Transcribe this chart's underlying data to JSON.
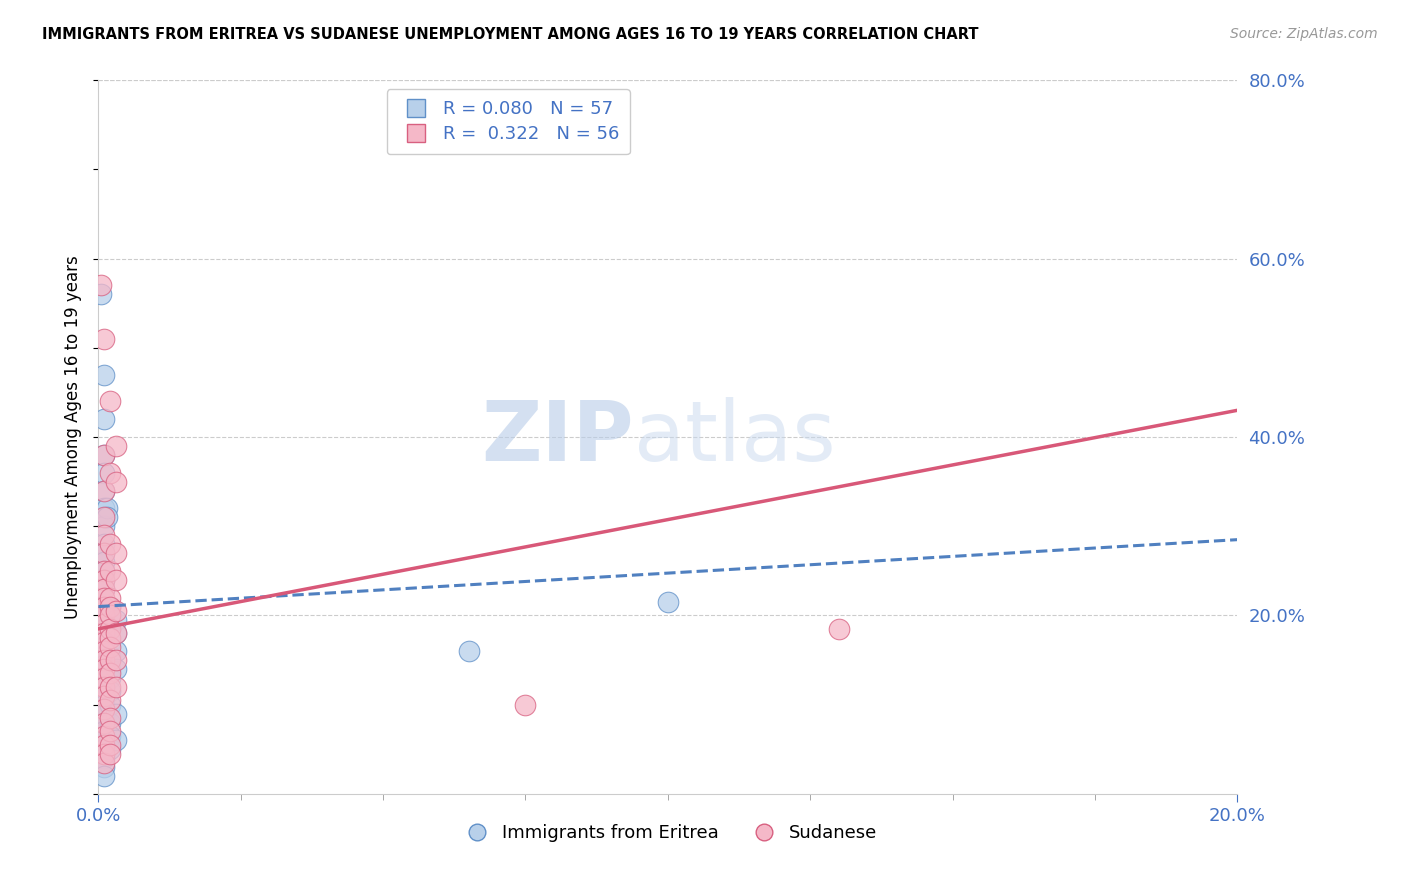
{
  "title": "IMMIGRANTS FROM ERITREA VS SUDANESE UNEMPLOYMENT AMONG AGES 16 TO 19 YEARS CORRELATION CHART",
  "source": "Source: ZipAtlas.com",
  "ylabel": "Unemployment Among Ages 16 to 19 years",
  "legend_labels": [
    "Immigrants from Eritrea",
    "Sudanese"
  ],
  "R_blue": 0.08,
  "N_blue": 57,
  "R_pink": 0.322,
  "N_pink": 56,
  "color_blue_fill": "#b8d0ea",
  "color_pink_fill": "#f5b8c8",
  "color_blue_edge": "#6090c8",
  "color_pink_edge": "#d86080",
  "color_blue_line": "#5080c0",
  "color_pink_line": "#d85878",
  "color_axis_labels": "#4472c4",
  "color_grid": "#cccccc",
  "xlim": [
    0.0,
    0.2
  ],
  "ylim": [
    0.0,
    0.8
  ],
  "x_ticks_minor": [
    0.0,
    0.025,
    0.05,
    0.075,
    0.1,
    0.125,
    0.15,
    0.175,
    0.2
  ],
  "x_ticks_labeled": [
    0.0,
    0.2
  ],
  "y_ticks_right": [
    0.2,
    0.4,
    0.6,
    0.8
  ],
  "watermark_zip": "ZIP",
  "watermark_atlas": "atlas",
  "blue_scatter": [
    [
      0.0005,
      0.56
    ],
    [
      0.001,
      0.47
    ],
    [
      0.001,
      0.42
    ],
    [
      0.001,
      0.38
    ],
    [
      0.001,
      0.36
    ],
    [
      0.001,
      0.34
    ],
    [
      0.001,
      0.32
    ],
    [
      0.001,
      0.31
    ],
    [
      0.001,
      0.3
    ],
    [
      0.0015,
      0.32
    ],
    [
      0.0015,
      0.31
    ],
    [
      0.001,
      0.28
    ],
    [
      0.001,
      0.27
    ],
    [
      0.001,
      0.26
    ],
    [
      0.001,
      0.25
    ],
    [
      0.001,
      0.24
    ],
    [
      0.001,
      0.23
    ],
    [
      0.001,
      0.21
    ],
    [
      0.001,
      0.2
    ],
    [
      0.001,
      0.195
    ],
    [
      0.001,
      0.185
    ],
    [
      0.001,
      0.175
    ],
    [
      0.001,
      0.165
    ],
    [
      0.001,
      0.155
    ],
    [
      0.001,
      0.145
    ],
    [
      0.001,
      0.13
    ],
    [
      0.001,
      0.12
    ],
    [
      0.001,
      0.11
    ],
    [
      0.001,
      0.1
    ],
    [
      0.001,
      0.09
    ],
    [
      0.001,
      0.08
    ],
    [
      0.001,
      0.07
    ],
    [
      0.001,
      0.06
    ],
    [
      0.001,
      0.05
    ],
    [
      0.001,
      0.04
    ],
    [
      0.001,
      0.03
    ],
    [
      0.001,
      0.02
    ],
    [
      0.002,
      0.21
    ],
    [
      0.002,
      0.2
    ],
    [
      0.002,
      0.185
    ],
    [
      0.002,
      0.17
    ],
    [
      0.002,
      0.155
    ],
    [
      0.002,
      0.14
    ],
    [
      0.002,
      0.13
    ],
    [
      0.002,
      0.115
    ],
    [
      0.002,
      0.1
    ],
    [
      0.002,
      0.08
    ],
    [
      0.002,
      0.065
    ],
    [
      0.002,
      0.05
    ],
    [
      0.003,
      0.195
    ],
    [
      0.003,
      0.18
    ],
    [
      0.003,
      0.16
    ],
    [
      0.003,
      0.14
    ],
    [
      0.003,
      0.09
    ],
    [
      0.003,
      0.06
    ],
    [
      0.065,
      0.16
    ],
    [
      0.1,
      0.215
    ]
  ],
  "pink_scatter": [
    [
      0.0005,
      0.57
    ],
    [
      0.001,
      0.51
    ],
    [
      0.001,
      0.38
    ],
    [
      0.001,
      0.34
    ],
    [
      0.001,
      0.31
    ],
    [
      0.001,
      0.29
    ],
    [
      0.001,
      0.27
    ],
    [
      0.001,
      0.25
    ],
    [
      0.001,
      0.24
    ],
    [
      0.001,
      0.23
    ],
    [
      0.001,
      0.22
    ],
    [
      0.001,
      0.21
    ],
    [
      0.001,
      0.2
    ],
    [
      0.001,
      0.19
    ],
    [
      0.001,
      0.18
    ],
    [
      0.001,
      0.17
    ],
    [
      0.001,
      0.16
    ],
    [
      0.001,
      0.15
    ],
    [
      0.001,
      0.14
    ],
    [
      0.001,
      0.13
    ],
    [
      0.001,
      0.12
    ],
    [
      0.001,
      0.11
    ],
    [
      0.001,
      0.095
    ],
    [
      0.001,
      0.08
    ],
    [
      0.001,
      0.065
    ],
    [
      0.001,
      0.055
    ],
    [
      0.001,
      0.045
    ],
    [
      0.001,
      0.035
    ],
    [
      0.002,
      0.44
    ],
    [
      0.002,
      0.36
    ],
    [
      0.002,
      0.28
    ],
    [
      0.002,
      0.25
    ],
    [
      0.002,
      0.22
    ],
    [
      0.002,
      0.21
    ],
    [
      0.002,
      0.2
    ],
    [
      0.002,
      0.185
    ],
    [
      0.002,
      0.175
    ],
    [
      0.002,
      0.165
    ],
    [
      0.002,
      0.15
    ],
    [
      0.002,
      0.135
    ],
    [
      0.002,
      0.12
    ],
    [
      0.002,
      0.105
    ],
    [
      0.002,
      0.085
    ],
    [
      0.002,
      0.07
    ],
    [
      0.002,
      0.055
    ],
    [
      0.002,
      0.045
    ],
    [
      0.003,
      0.39
    ],
    [
      0.003,
      0.35
    ],
    [
      0.003,
      0.27
    ],
    [
      0.003,
      0.24
    ],
    [
      0.003,
      0.205
    ],
    [
      0.003,
      0.18
    ],
    [
      0.003,
      0.15
    ],
    [
      0.003,
      0.12
    ],
    [
      0.075,
      0.1
    ],
    [
      0.13,
      0.185
    ]
  ],
  "blue_line_x": [
    0.0,
    0.2
  ],
  "blue_line_y": [
    0.21,
    0.285
  ],
  "pink_line_x": [
    0.0,
    0.2
  ],
  "pink_line_y": [
    0.185,
    0.43
  ]
}
